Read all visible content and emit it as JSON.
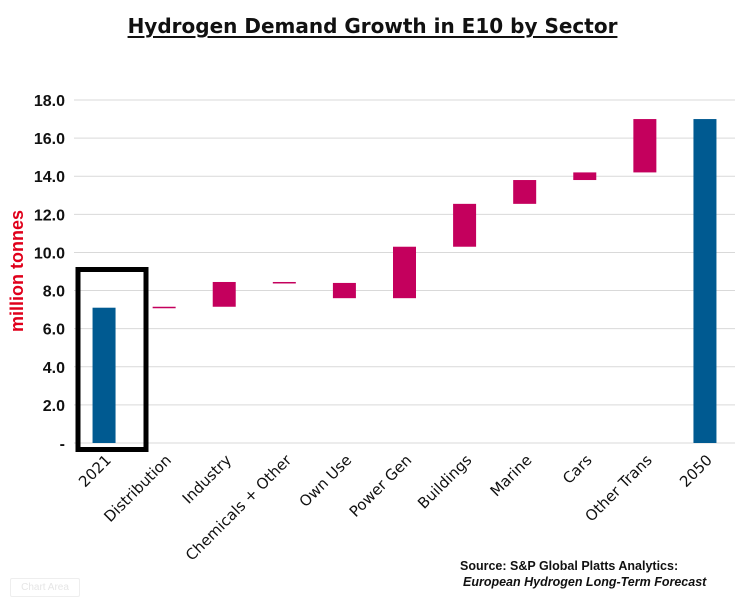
{
  "title": "Hydrogen Demand Growth in E10 by Sector",
  "source": {
    "line1": "Source: S&P Global Platts Analytics:",
    "line2": "European Hydrogen Long-Term Forecast"
  },
  "chart_area_tag": "Chart Area",
  "colors": {
    "total": "#005a91",
    "increment": "#c4005d",
    "ylabel": "#e0001b",
    "highlight_box": "#000000"
  },
  "chart_data": {
    "type": "bar",
    "subtype": "waterfall",
    "title": "Hydrogen Demand Growth in E10 by Sector",
    "ylabel": "million tonnes",
    "xlabel": "",
    "ylim": [
      0,
      18
    ],
    "yticks": [
      0,
      2,
      4,
      6,
      8,
      10,
      12,
      14,
      16,
      18
    ],
    "ytick_labels": [
      "-",
      "2.0",
      "4.0",
      "6.0",
      "8.0",
      "10.0",
      "12.0",
      "14.0",
      "16.0",
      "18.0"
    ],
    "grid": true,
    "highlighted_category": "2021",
    "categories": [
      "2021",
      "Distribution",
      "Industry",
      "Chemicals + Other",
      "Own Use",
      "Power Gen",
      "Buildings",
      "Marine",
      "Cars",
      "Other Trans",
      "2050"
    ],
    "bars": [
      {
        "label": "2021",
        "kind": "total",
        "start": 0,
        "end": 7.1
      },
      {
        "label": "Distribution",
        "kind": "increment",
        "start": 7.1,
        "end": 7.15
      },
      {
        "label": "Industry",
        "kind": "increment",
        "start": 7.15,
        "end": 8.45
      },
      {
        "label": "Chemicals + Other",
        "kind": "increment",
        "start": 8.4,
        "end": 8.45
      },
      {
        "label": "Own Use",
        "kind": "increment",
        "start": 7.6,
        "end": 8.4
      },
      {
        "label": "Power Gen",
        "kind": "increment",
        "start": 7.6,
        "end": 10.3
      },
      {
        "label": "Buildings",
        "kind": "increment",
        "start": 10.3,
        "end": 12.55
      },
      {
        "label": "Marine",
        "kind": "increment",
        "start": 12.55,
        "end": 13.8
      },
      {
        "label": "Cars",
        "kind": "increment",
        "start": 13.8,
        "end": 14.2
      },
      {
        "label": "Other Trans",
        "kind": "increment",
        "start": 14.2,
        "end": 17.0
      },
      {
        "label": "2050",
        "kind": "total",
        "start": 0,
        "end": 17.0
      }
    ]
  }
}
